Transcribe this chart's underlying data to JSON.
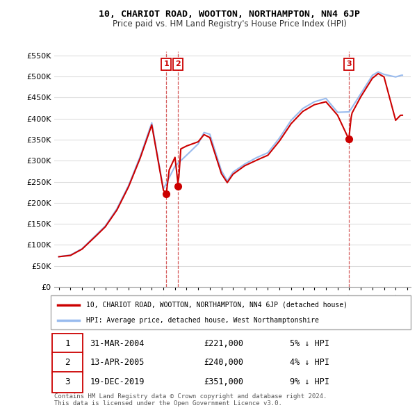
{
  "title": "10, CHARIOT ROAD, WOOTTON, NORTHAMPTON, NN4 6JP",
  "subtitle": "Price paid vs. HM Land Registry's House Price Index (HPI)",
  "ylim": [
    0,
    560000
  ],
  "yticks": [
    0,
    50000,
    100000,
    150000,
    200000,
    250000,
    300000,
    350000,
    400000,
    450000,
    500000,
    550000
  ],
  "background_color": "#ffffff",
  "grid_color": "#dddddd",
  "transactions": [
    {
      "date_num": 2004.25,
      "price": 221000,
      "label": "1"
    },
    {
      "date_num": 2005.28,
      "price": 240000,
      "label": "2"
    },
    {
      "date_num": 2019.97,
      "price": 351000,
      "label": "3"
    }
  ],
  "legend_house_label": "10, CHARIOT ROAD, WOOTTON, NORTHAMPTON, NN4 6JP (detached house)",
  "legend_hpi_label": "HPI: Average price, detached house, West Northamptonshire",
  "house_color": "#cc0000",
  "hpi_color": "#99bbee",
  "table_rows": [
    {
      "num": "1",
      "date": "31-MAR-2004",
      "price": "£221,000",
      "pct": "5% ↓ HPI"
    },
    {
      "num": "2",
      "date": "13-APR-2005",
      "price": "£240,000",
      "pct": "4% ↓ HPI"
    },
    {
      "num": "3",
      "date": "19-DEC-2019",
      "price": "£351,000",
      "pct": "9% ↓ HPI"
    }
  ],
  "copyright_text": "Contains HM Land Registry data © Crown copyright and database right 2024.\nThis data is licensed under the Open Government Licence v3.0."
}
